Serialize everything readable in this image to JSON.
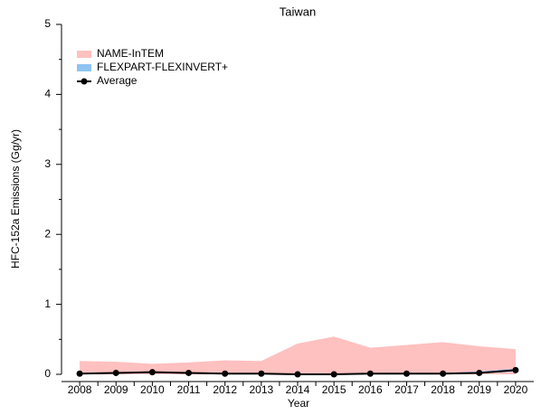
{
  "chart_data": {
    "type": "band-line",
    "title": "Taiwan",
    "x_label": "Year",
    "y_label": "HFC-152a Emissions (Gg/yr)",
    "x": [
      2008,
      2009,
      2010,
      2011,
      2012,
      2013,
      2014,
      2015,
      2016,
      2017,
      2018,
      2019,
      2020
    ],
    "xlim": [
      2007.5,
      2020.5
    ],
    "xticks": [
      2008,
      2009,
      2010,
      2011,
      2012,
      2013,
      2014,
      2015,
      2016,
      2017,
      2018,
      2019,
      2020
    ],
    "ylim": [
      0,
      5
    ],
    "yticks": [
      0,
      1,
      2,
      3,
      4,
      5
    ],
    "legend": "upper-left",
    "series": [
      {
        "name": "NAME-InTEM",
        "color": "#ffc0c0",
        "upper": [
          0.19,
          0.18,
          0.15,
          0.17,
          0.2,
          0.19,
          0.44,
          0.54,
          0.38,
          0.42,
          0.46,
          0.4,
          0.36
        ],
        "lower": [
          0,
          0,
          0,
          0,
          0,
          0,
          0,
          0,
          0,
          0,
          0,
          0,
          0
        ]
      },
      {
        "name": "FLEXPART-FLEXINVERT+",
        "color": "#8fc3f0",
        "upper": [
          0.01,
          0.02,
          0.03,
          0.02,
          0.01,
          0.01,
          0,
          0,
          0.01,
          0.01,
          0.02,
          0.04,
          0.08
        ],
        "lower": [
          0,
          0.01,
          0.02,
          0.01,
          0,
          0,
          0,
          0,
          0,
          0,
          0,
          0.01,
          0.04
        ]
      },
      {
        "name": "Average",
        "color": "#000000",
        "values": [
          0.01,
          0.02,
          0.03,
          0.02,
          0.01,
          0.01,
          0,
          0,
          0.01,
          0.01,
          0.01,
          0.02,
          0.06
        ]
      }
    ]
  }
}
